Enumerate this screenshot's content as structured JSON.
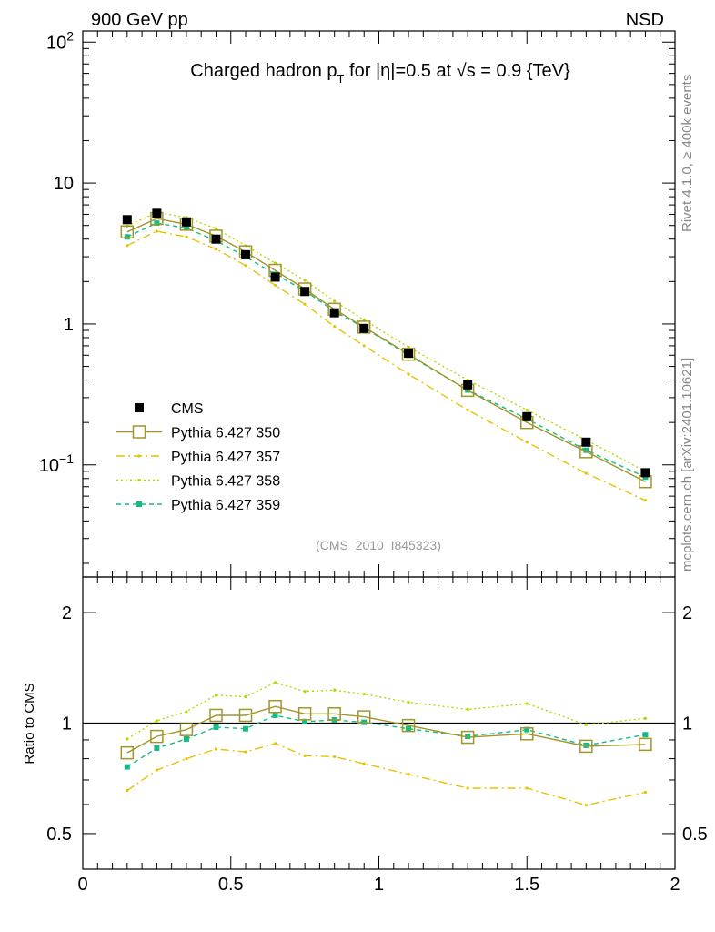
{
  "header": {
    "left": "900 GeV pp",
    "right": "NSD"
  },
  "side_text": {
    "rivet": "Rivet 4.1.0, ≥ 400k events",
    "mcplots": "mcplots.cern.ch [arXiv:2401.10621]"
  },
  "analysis_id": "(CMS_2010_I845323)",
  "title_parts": {
    "pre": "Charged hadron p",
    "sub": "T",
    "mid": " for |η|=0.5 at √s = 0.9 {TeV}"
  },
  "upper_ticks": [
    {
      "v": 100,
      "t": "10",
      "sup": "2"
    },
    {
      "v": 10,
      "t": "10",
      "sup": ""
    },
    {
      "v": 1,
      "t": "1",
      "sup": ""
    },
    {
      "v": 0.1,
      "t": "10",
      "sup": "−1"
    }
  ],
  "lower_ticks": [
    {
      "v": 0.5,
      "t": "0.5"
    },
    {
      "v": 1,
      "t": "1"
    },
    {
      "v": 2,
      "t": "2"
    }
  ],
  "x_ticks": [
    {
      "v": 0,
      "t": "0"
    },
    {
      "v": 0.5,
      "t": "0.5"
    },
    {
      "v": 1,
      "t": "1"
    },
    {
      "v": 1.5,
      "t": "1.5"
    },
    {
      "v": 2,
      "t": "2"
    }
  ],
  "chart_data": [
    {
      "type": "scatter",
      "panel": "main",
      "title": "Charged hadron pT for |η|=0.5 at √s = 0.9 {TeV}",
      "xlabel": "",
      "ylabel": "",
      "yscale": "log",
      "xlim": [
        0,
        2
      ],
      "ylim": [
        0.016,
        120
      ],
      "x": [
        0.15,
        0.25,
        0.35,
        0.45,
        0.55,
        0.65,
        0.75,
        0.85,
        0.95,
        1.1,
        1.3,
        1.5,
        1.7,
        1.9
      ],
      "series": [
        {
          "name": "CMS",
          "color": "#000000",
          "style": "data",
          "values": [
            5.5,
            6.1,
            5.3,
            4.0,
            3.1,
            2.15,
            1.7,
            1.2,
            0.93,
            0.62,
            0.37,
            0.22,
            0.145,
            0.088
          ]
        },
        {
          "name": "Pythia 6.427 350",
          "color": "#a0962a",
          "style": "solid-open-square",
          "values": [
            4.5,
            5.6,
            5.1,
            4.2,
            3.25,
            2.4,
            1.77,
            1.27,
            0.95,
            0.61,
            0.338,
            0.2,
            0.124,
            0.076
          ]
        },
        {
          "name": "Pythia 6.427 357",
          "color": "#e6c300",
          "style": "dashdot",
          "values": [
            3.6,
            4.55,
            4.15,
            3.4,
            2.6,
            1.88,
            1.38,
            0.96,
            0.7,
            0.44,
            0.245,
            0.145,
            0.087,
            0.056
          ]
        },
        {
          "name": "Pythia 6.427 358",
          "color": "#bcd400",
          "style": "dotted",
          "values": [
            4.95,
            6.2,
            5.7,
            4.75,
            3.6,
            2.7,
            2.04,
            1.45,
            1.07,
            0.685,
            0.4,
            0.245,
            0.15,
            0.09
          ]
        },
        {
          "name": "Pythia 6.427 359",
          "color": "#14bc84",
          "style": "dashed-filled-square",
          "values": [
            4.15,
            5.2,
            4.8,
            3.9,
            3.0,
            2.25,
            1.72,
            1.23,
            0.94,
            0.6,
            0.34,
            0.212,
            0.127,
            0.082
          ]
        }
      ]
    },
    {
      "type": "line",
      "panel": "ratio",
      "title": "",
      "xlabel": "",
      "ylabel": "Ratio to CMS",
      "yscale": "log",
      "xlim": [
        0,
        2
      ],
      "ylim": [
        0.4,
        2.5
      ],
      "reference": 1,
      "x": [
        0.15,
        0.25,
        0.35,
        0.45,
        0.55,
        0.65,
        0.75,
        0.85,
        0.95,
        1.1,
        1.3,
        1.5,
        1.7,
        1.9
      ],
      "series": [
        {
          "name": "Pythia 6.427 350",
          "color": "#a0962a",
          "style": "solid-open-square",
          "values": [
            0.83,
            0.92,
            0.96,
            1.05,
            1.05,
            1.11,
            1.06,
            1.06,
            1.04,
            0.985,
            0.915,
            0.935,
            0.865,
            0.875
          ]
        },
        {
          "name": "Pythia 6.427 357",
          "color": "#e6c300",
          "style": "dashdot",
          "values": [
            0.655,
            0.745,
            0.8,
            0.85,
            0.835,
            0.88,
            0.815,
            0.81,
            0.775,
            0.725,
            0.665,
            0.665,
            0.598,
            0.648
          ]
        },
        {
          "name": "Pythia 6.427 358",
          "color": "#bcd400",
          "style": "dotted",
          "values": [
            0.905,
            1.015,
            1.075,
            1.19,
            1.18,
            1.29,
            1.22,
            1.23,
            1.2,
            1.14,
            1.09,
            1.13,
            0.99,
            1.03
          ]
        },
        {
          "name": "Pythia 6.427 359",
          "color": "#14bc84",
          "style": "dashed-filled-square",
          "values": [
            0.76,
            0.855,
            0.905,
            0.975,
            0.965,
            1.05,
            1.01,
            1.02,
            1.005,
            0.965,
            0.92,
            0.96,
            0.87,
            0.93
          ]
        }
      ]
    }
  ]
}
